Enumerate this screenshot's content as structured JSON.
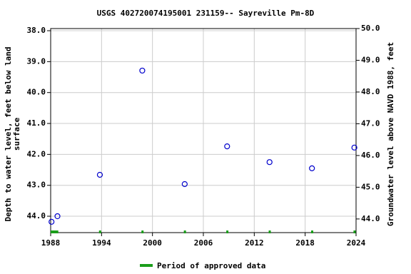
{
  "chart_data": {
    "type": "scatter",
    "title": "USGS 402720074195001 231159-- Sayreville Pm-8D",
    "ylabel": [
      "Depth to water level, feet below land",
      "surface"
    ],
    "y2label": "Groundwater level above NAVD 1988, feet",
    "series": [
      {
        "name": "Depth to water level",
        "color": "#0000cc",
        "x": [
          1988.1,
          1988.8,
          1993.8,
          1998.8,
          2003.8,
          2008.8,
          2013.8,
          2018.8,
          2023.8
        ],
        "values": [
          44.18,
          44.0,
          42.66,
          39.29,
          42.96,
          41.74,
          42.25,
          42.45,
          41.78
        ]
      }
    ],
    "approved_periods": [
      [
        1988.0,
        1988.9
      ],
      [
        1993.7,
        1993.9
      ],
      [
        1998.7,
        1998.9
      ],
      [
        2003.7,
        2003.9
      ],
      [
        2008.7,
        2008.9
      ],
      [
        2013.7,
        2013.9
      ],
      [
        2018.7,
        2018.9
      ],
      [
        2023.7,
        2023.9
      ]
    ],
    "approved_color": "#1a9e1a",
    "legend": "Period of approved data",
    "xlim": [
      1988,
      2024
    ],
    "xticks": [
      1988,
      1994,
      2000,
      2006,
      2012,
      2018,
      2024
    ],
    "ylim": [
      37.93,
      44.53
    ],
    "y_inverted": true,
    "yticks": [
      {
        "value": 38,
        "label": "38.0"
      },
      {
        "value": 39,
        "label": "39.0"
      },
      {
        "value": 40,
        "label": "40.0"
      },
      {
        "value": 41,
        "label": "41.0"
      },
      {
        "value": 42,
        "label": "42.0"
      },
      {
        "value": 43,
        "label": "43.0"
      },
      {
        "value": 44,
        "label": "44.0"
      }
    ],
    "y2lim": [
      43.57,
      50.0
    ],
    "y2ticks": [
      {
        "value": 44,
        "label": "44.0"
      },
      {
        "value": 45,
        "label": "45.0"
      },
      {
        "value": 46,
        "label": "46.0"
      },
      {
        "value": 47,
        "label": "47.0"
      },
      {
        "value": 48,
        "label": "48.0"
      },
      {
        "value": 49,
        "label": "49.0"
      },
      {
        "value": 50,
        "label": "50.0"
      }
    ],
    "grid": true
  }
}
